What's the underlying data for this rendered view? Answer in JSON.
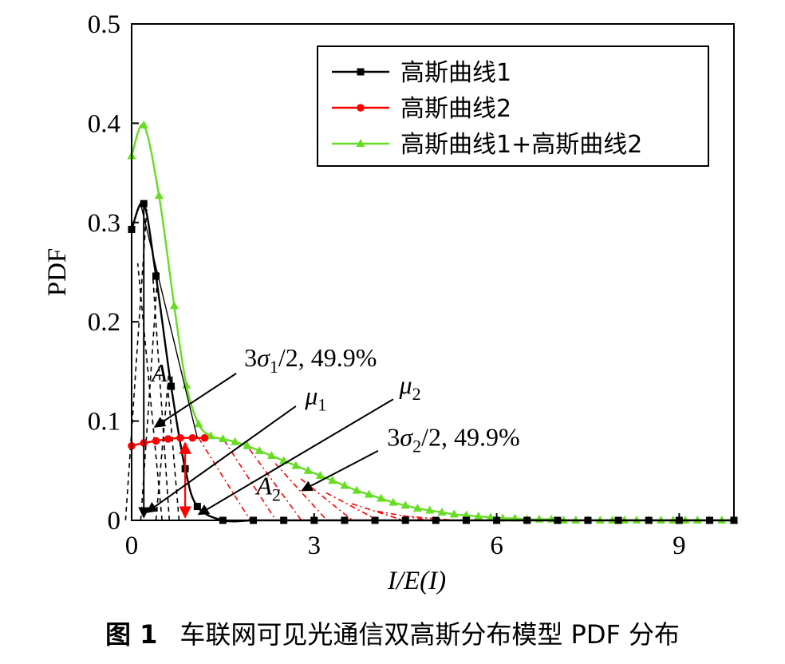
{
  "chart_data": {
    "type": "line",
    "xlabel": "I/E(I)",
    "ylabel": "PDF",
    "xlim": [
      0,
      9.9
    ],
    "ylim": [
      0,
      0.5
    ],
    "xticks": [
      "0",
      "3",
      "6",
      "9"
    ],
    "yticks": [
      "0",
      "0.1",
      "0.2",
      "0.3",
      "0.4",
      "0.5"
    ],
    "grid": false,
    "legend_position": "top-right",
    "series": [
      {
        "name": "高斯曲线1",
        "color": "#000000",
        "marker": "square",
        "x": [
          0,
          0.2,
          0.4,
          0.65,
          0.88,
          1.08,
          1.5,
          2.0,
          2.5,
          3.0,
          3.5,
          4.0,
          4.5,
          5.0,
          5.5,
          6.0,
          6.5,
          7.0,
          7.5,
          8.0,
          8.5,
          9.0,
          9.5,
          9.9
        ],
        "y": [
          0.293,
          0.319,
          0.246,
          0.135,
          0.052,
          0.014,
          0.0,
          0.0,
          0.0,
          0.0,
          0.0,
          0.0,
          0.0,
          0.0,
          0.0,
          0.0,
          0.0,
          0.0,
          0.0,
          0.0,
          0.0,
          0.0,
          0.0,
          0.0
        ]
      },
      {
        "name": "高斯曲线2",
        "color": "#ff0000",
        "marker": "circle",
        "x": [
          0,
          0.2,
          0.4,
          0.6,
          0.8,
          1.0,
          1.2
        ],
        "y": [
          0.075,
          0.078,
          0.08,
          0.082,
          0.083,
          0.083,
          0.083
        ]
      },
      {
        "name": "高斯曲线1+高斯曲线2",
        "color": "#66dd22",
        "marker": "triangle",
        "x": [
          0,
          0.2,
          0.45,
          0.7,
          0.9,
          1.1,
          1.3,
          1.5,
          1.7,
          1.9,
          2.1,
          2.3,
          2.5,
          2.7,
          2.9,
          3.1,
          3.3,
          3.5,
          3.7,
          3.9,
          4.1,
          4.3,
          4.5,
          4.7,
          4.9,
          5.1,
          5.3,
          5.5,
          5.7,
          5.9,
          6.1,
          6.3,
          6.5,
          6.7,
          6.9,
          7.1,
          7.3,
          7.5,
          7.7,
          7.9,
          8.1,
          8.3,
          8.5,
          8.7,
          8.9,
          9.1,
          9.3,
          9.5,
          9.7,
          9.9
        ],
        "y": [
          0.367,
          0.398,
          0.327,
          0.216,
          0.136,
          0.097,
          0.085,
          0.082,
          0.079,
          0.075,
          0.07,
          0.065,
          0.06,
          0.055,
          0.05,
          0.045,
          0.04,
          0.035,
          0.03,
          0.026,
          0.022,
          0.018,
          0.015,
          0.012,
          0.01,
          0.008,
          0.006,
          0.005,
          0.004,
          0.003,
          0.002,
          0.002,
          0.001,
          0.001,
          0.001,
          0.0,
          0.0,
          0.0,
          0.0,
          0.0,
          0.0,
          0.0,
          0.0,
          0.0,
          0.0,
          0.0,
          0.0,
          0.0,
          0.0,
          0.0
        ]
      }
    ],
    "annotations": [
      {
        "base": "A",
        "sub": "1",
        "italic": true,
        "x": 0.33,
        "y": 0.14
      },
      {
        "base": "A",
        "sub": "2",
        "italic": true,
        "x": 2.05,
        "y": 0.026
      },
      {
        "pre": "3",
        "base": "σ",
        "sub": "1",
        "post": "/2, 49.9%",
        "x": 1.85,
        "y": 0.155
      },
      {
        "base": "μ",
        "sub": "1",
        "x": 2.85,
        "y": 0.117
      },
      {
        "base": "μ",
        "sub": "2",
        "x": 4.4,
        "y": 0.128
      },
      {
        "pre": "3",
        "base": "σ",
        "sub": "2",
        "post": "/2, 49.9%",
        "x": 4.2,
        "y": 0.075
      }
    ]
  },
  "caption": {
    "figure_no": "图 1",
    "text": "车联网可见光通信双高斯分布模型 PDF 分布"
  }
}
